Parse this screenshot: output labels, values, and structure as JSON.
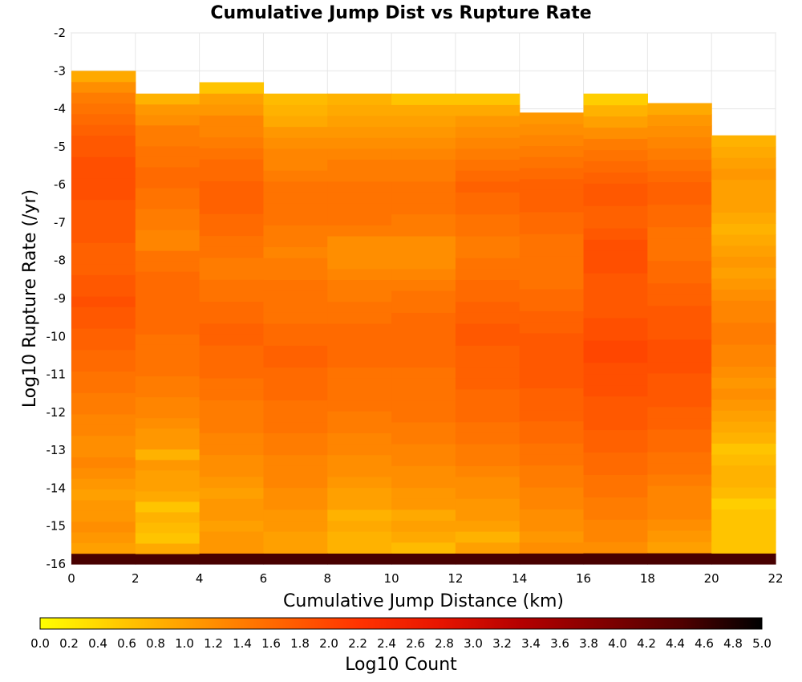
{
  "chart_data": {
    "type": "heatmap",
    "title": "Cumulative Jump Dist vs Rupture Rate",
    "xlabel": "Cumulative Jump Distance (km)",
    "ylabel": "Log10 Rupture Rate (/yr)",
    "colorbar_label": "Log10 Count",
    "xlim": [
      0,
      22
    ],
    "ylim": [
      -16,
      -2
    ],
    "x_ticks": [
      "0",
      "2",
      "4",
      "6",
      "8",
      "10",
      "12",
      "14",
      "16",
      "18",
      "20",
      "22"
    ],
    "y_ticks": [
      "-2",
      "-3",
      "-4",
      "-5",
      "-6",
      "-7",
      "-8",
      "-9",
      "-10",
      "-11",
      "-12",
      "-13",
      "-14",
      "-15",
      "-16"
    ],
    "colorbar_range": [
      0,
      5
    ],
    "colorbar_ticks": [
      "0.0",
      "0.2",
      "0.4",
      "0.6",
      "0.8",
      "1.0",
      "1.2",
      "1.4",
      "1.6",
      "1.8",
      "2.0",
      "2.2",
      "2.4",
      "2.6",
      "2.8",
      "3.0",
      "3.2",
      "3.4",
      "3.6",
      "3.8",
      "4.0",
      "4.2",
      "4.4",
      "4.6",
      "4.8",
      "5.0"
    ],
    "colormap": [
      "#ffff00",
      "#ffc800",
      "#ff9600",
      "#ff6400",
      "#ff3200",
      "#e61400",
      "#b40000",
      "#820000",
      "#500000",
      "#000000"
    ],
    "x_bin_width_km": 2,
    "y_bin_height_log10": 0.28,
    "y_bin_start": -16,
    "columns": [
      {
        "x": 0,
        "top": -3.0,
        "values": [
          4.5,
          1.0,
          1.1,
          1.2,
          1.1,
          1.1,
          1.0,
          1.1,
          1.2,
          1.3,
          1.2,
          1.2,
          1.3,
          1.3,
          1.4,
          1.4,
          1.5,
          1.5,
          1.6,
          1.6,
          1.7,
          1.7,
          1.8,
          1.8,
          1.9,
          1.8,
          1.8,
          1.7,
          1.7,
          1.7,
          1.8,
          1.8,
          1.8,
          1.8,
          1.9,
          1.9,
          1.9,
          1.9,
          1.8,
          1.8,
          1.7,
          1.6,
          1.5,
          1.4,
          1.2,
          0.9
        ]
      },
      {
        "x": 2,
        "top": -3.6,
        "values": [
          4.5,
          0.9,
          0.6,
          0.7,
          0.8,
          0.6,
          0.9,
          1.0,
          1.0,
          1.1,
          0.8,
          1.1,
          1.1,
          1.2,
          1.3,
          1.3,
          1.4,
          1.4,
          1.5,
          1.5,
          1.5,
          1.5,
          1.6,
          1.6,
          1.6,
          1.6,
          1.6,
          1.6,
          1.5,
          1.5,
          1.3,
          1.3,
          1.4,
          1.4,
          1.5,
          1.5,
          1.6,
          1.6,
          1.5,
          1.5,
          1.4,
          1.4,
          1.2,
          1.1,
          0.8
        ]
      },
      {
        "x": 4,
        "top": -3.3,
        "values": [
          4.5,
          1.1,
          1.1,
          1.0,
          1.1,
          1.1,
          1.0,
          1.1,
          1.2,
          1.2,
          1.3,
          1.3,
          1.4,
          1.4,
          1.4,
          1.5,
          1.5,
          1.6,
          1.6,
          1.6,
          1.7,
          1.7,
          1.6,
          1.6,
          1.5,
          1.5,
          1.4,
          1.4,
          1.5,
          1.5,
          1.6,
          1.6,
          1.7,
          1.7,
          1.7,
          1.6,
          1.6,
          1.5,
          1.4,
          1.3,
          1.3,
          1.1,
          1.0,
          0.6
        ]
      },
      {
        "x": 6,
        "top": -3.6,
        "values": [
          4.5,
          1.0,
          1.0,
          1.1,
          1.1,
          1.2,
          1.2,
          1.3,
          1.3,
          1.3,
          1.4,
          1.4,
          1.5,
          1.5,
          1.5,
          1.6,
          1.6,
          1.6,
          1.7,
          1.7,
          1.6,
          1.6,
          1.5,
          1.5,
          1.5,
          1.5,
          1.4,
          1.4,
          1.3,
          1.4,
          1.4,
          1.5,
          1.5,
          1.5,
          1.5,
          1.4,
          1.3,
          1.3,
          1.2,
          1.1,
          0.9,
          0.8,
          0.7
        ]
      },
      {
        "x": 8,
        "top": -3.6,
        "values": [
          4.5,
          0.8,
          0.8,
          0.9,
          0.8,
          1.0,
          1.0,
          1.1,
          1.2,
          1.2,
          1.3,
          1.3,
          1.4,
          1.4,
          1.5,
          1.5,
          1.5,
          1.5,
          1.6,
          1.6,
          1.6,
          1.6,
          1.5,
          1.5,
          1.4,
          1.4,
          1.3,
          1.2,
          1.2,
          1.2,
          1.4,
          1.5,
          1.5,
          1.5,
          1.5,
          1.4,
          1.4,
          1.3,
          1.2,
          1.1,
          1.0,
          0.9,
          0.8
        ]
      },
      {
        "x": 10,
        "top": -3.6,
        "values": [
          4.5,
          0.7,
          0.9,
          1.0,
          0.9,
          1.1,
          1.1,
          1.2,
          1.2,
          1.3,
          1.3,
          1.4,
          1.4,
          1.5,
          1.5,
          1.5,
          1.5,
          1.5,
          1.6,
          1.6,
          1.6,
          1.6,
          1.6,
          1.5,
          1.5,
          1.4,
          1.3,
          1.2,
          1.2,
          1.2,
          1.4,
          1.4,
          1.5,
          1.5,
          1.5,
          1.4,
          1.4,
          1.3,
          1.2,
          1.1,
          1.0,
          0.9,
          0.6
        ]
      },
      {
        "x": 12,
        "top": -3.6,
        "values": [
          4.5,
          1.0,
          0.8,
          1.0,
          1.1,
          1.1,
          1.2,
          1.2,
          1.3,
          1.4,
          1.4,
          1.5,
          1.5,
          1.6,
          1.6,
          1.6,
          1.7,
          1.7,
          1.7,
          1.7,
          1.8,
          1.8,
          1.7,
          1.7,
          1.6,
          1.6,
          1.5,
          1.5,
          1.4,
          1.4,
          1.5,
          1.5,
          1.6,
          1.6,
          1.7,
          1.6,
          1.5,
          1.4,
          1.3,
          1.2,
          1.1,
          0.9,
          0.6
        ]
      },
      {
        "x": 14,
        "top": -4.1,
        "values": [
          4.5,
          1.2,
          1.1,
          1.2,
          1.2,
          1.3,
          1.3,
          1.4,
          1.4,
          1.5,
          1.5,
          1.6,
          1.6,
          1.7,
          1.7,
          1.7,
          1.8,
          1.8,
          1.8,
          1.8,
          1.8,
          1.7,
          1.7,
          1.6,
          1.6,
          1.5,
          1.5,
          1.5,
          1.5,
          1.5,
          1.6,
          1.6,
          1.7,
          1.7,
          1.7,
          1.6,
          1.5,
          1.4,
          1.3,
          1.2,
          1.1
        ]
      },
      {
        "x": 16,
        "top": -3.6,
        "values": [
          4.5,
          1.2,
          1.3,
          1.3,
          1.4,
          1.4,
          1.5,
          1.5,
          1.6,
          1.6,
          1.7,
          1.7,
          1.8,
          1.8,
          1.8,
          1.9,
          1.9,
          1.9,
          2.0,
          2.0,
          1.9,
          1.9,
          1.8,
          1.8,
          1.8,
          1.8,
          1.9,
          1.9,
          1.9,
          1.8,
          1.7,
          1.7,
          1.8,
          1.8,
          1.7,
          1.6,
          1.5,
          1.4,
          1.2,
          1.0,
          0.8,
          0.5
        ]
      },
      {
        "x": 18,
        "top": -3.85,
        "values": [
          4.5,
          1.0,
          1.1,
          1.2,
          1.3,
          1.3,
          1.3,
          1.4,
          1.5,
          1.5,
          1.6,
          1.6,
          1.7,
          1.7,
          1.8,
          1.8,
          1.8,
          1.9,
          1.9,
          1.9,
          1.8,
          1.8,
          1.8,
          1.7,
          1.7,
          1.6,
          1.6,
          1.5,
          1.5,
          1.5,
          1.6,
          1.6,
          1.7,
          1.7,
          1.6,
          1.5,
          1.4,
          1.3,
          1.2,
          1.1,
          0.9
        ]
      },
      {
        "x": 20,
        "top": -4.7,
        "values": [
          4.5,
          0.6,
          0.6,
          0.6,
          0.6,
          0.5,
          0.7,
          0.8,
          0.8,
          0.7,
          0.6,
          0.8,
          0.9,
          1.0,
          1.1,
          1.2,
          1.1,
          1.2,
          1.3,
          1.3,
          1.4,
          1.4,
          1.3,
          1.3,
          1.2,
          1.1,
          1.0,
          1.1,
          1.0,
          0.9,
          0.8,
          0.9,
          1.0,
          1.0,
          1.0,
          1.1,
          1.0,
          0.9,
          0.8
        ]
      }
    ]
  }
}
